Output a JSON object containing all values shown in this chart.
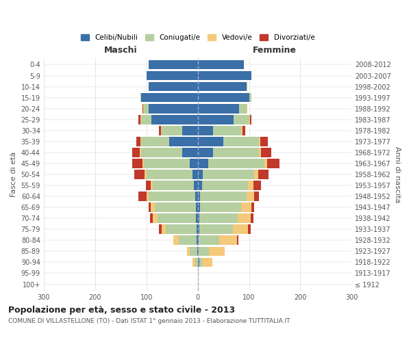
{
  "age_groups": [
    "100+",
    "95-99",
    "90-94",
    "85-89",
    "80-84",
    "75-79",
    "70-74",
    "65-69",
    "60-64",
    "55-59",
    "50-54",
    "45-49",
    "40-44",
    "35-39",
    "30-34",
    "25-29",
    "20-24",
    "15-19",
    "10-14",
    "5-9",
    "0-4"
  ],
  "birth_years": [
    "≤ 1912",
    "1913-1917",
    "1918-1922",
    "1923-1927",
    "1928-1932",
    "1933-1937",
    "1938-1942",
    "1943-1947",
    "1948-1952",
    "1953-1957",
    "1958-1962",
    "1963-1967",
    "1968-1972",
    "1973-1977",
    "1978-1982",
    "1983-1987",
    "1988-1992",
    "1993-1997",
    "1998-2002",
    "2003-2007",
    "2008-2012"
  ],
  "maschi": {
    "celibe": [
      0,
      0,
      0,
      1,
      2,
      2,
      3,
      3,
      5,
      8,
      10,
      15,
      30,
      55,
      30,
      90,
      95,
      110,
      95,
      100,
      95
    ],
    "coniugato": [
      0,
      0,
      5,
      15,
      35,
      60,
      75,
      80,
      90,
      80,
      90,
      90,
      80,
      55,
      40,
      20,
      10,
      2,
      1,
      0,
      0
    ],
    "vedovo": [
      0,
      0,
      5,
      5,
      10,
      8,
      10,
      8,
      5,
      3,
      3,
      3,
      3,
      2,
      1,
      2,
      1,
      0,
      0,
      0,
      0
    ],
    "divorziato": [
      0,
      0,
      0,
      0,
      0,
      5,
      5,
      5,
      15,
      10,
      20,
      20,
      15,
      8,
      5,
      3,
      1,
      0,
      0,
      0,
      0
    ]
  },
  "femmine": {
    "nubile": [
      0,
      0,
      3,
      2,
      2,
      3,
      3,
      5,
      5,
      8,
      10,
      20,
      30,
      50,
      30,
      70,
      80,
      100,
      95,
      105,
      90
    ],
    "coniugata": [
      0,
      0,
      5,
      20,
      40,
      65,
      75,
      80,
      90,
      90,
      100,
      110,
      90,
      70,
      55,
      30,
      15,
      5,
      2,
      0,
      0
    ],
    "vedova": [
      2,
      2,
      20,
      30,
      35,
      30,
      25,
      20,
      15,
      10,
      8,
      5,
      3,
      2,
      2,
      2,
      1,
      0,
      0,
      0,
      0
    ],
    "divorziata": [
      0,
      0,
      0,
      0,
      2,
      5,
      5,
      5,
      10,
      15,
      20,
      25,
      20,
      15,
      5,
      3,
      1,
      0,
      0,
      0,
      0
    ]
  },
  "colors": {
    "celibe": "#3a6fa8",
    "coniugato": "#b5cfa0",
    "vedovo": "#f5c97a",
    "divorziato": "#c0392b"
  },
  "xlim": 300,
  "title": "Popolazione per età, sesso e stato civile - 2013",
  "subtitle": "COMUNE DI VILLASTELLONE (TO) - Dati ISTAT 1° gennaio 2013 - Elaborazione TUTTITALIA.IT",
  "xlabel_left": "Maschi",
  "xlabel_right": "Femmine",
  "ylabel_left": "Fasce di età",
  "ylabel_right": "Anni di nascita",
  "legend_labels": [
    "Celibi/Nubili",
    "Coniugati/e",
    "Vedovi/e",
    "Divorziati/e"
  ],
  "bg_color": "#ffffff",
  "grid_color": "#cccccc"
}
